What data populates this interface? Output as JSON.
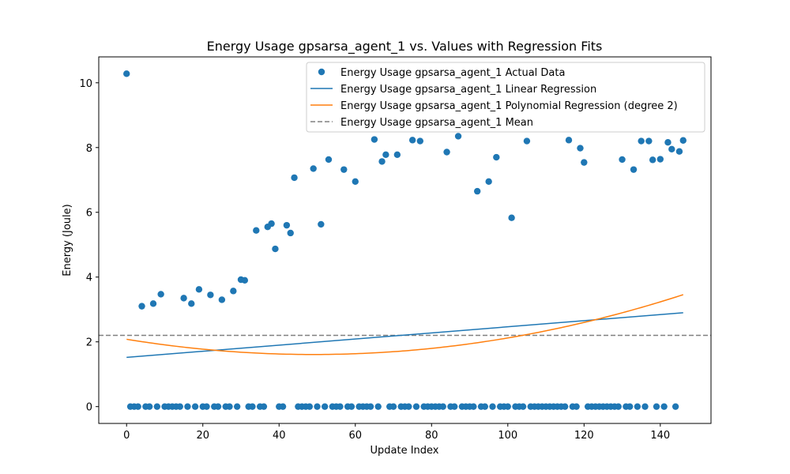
{
  "chart_data": {
    "type": "scatter",
    "title": "Energy Usage gpsarsa_agent_1 vs. Values with Regression Fits",
    "xlabel": "Update Index",
    "ylabel": "Energy (Joule)",
    "xlim": [
      -7.3,
      153.3
    ],
    "ylim": [
      -0.52,
      10.8
    ],
    "xticks": [
      0,
      20,
      40,
      60,
      80,
      100,
      120,
      140
    ],
    "yticks": [
      0,
      2,
      4,
      6,
      8,
      10
    ],
    "grid": false,
    "legend_position": "top-right",
    "points": [
      [
        0,
        10.28
      ],
      [
        1,
        0
      ],
      [
        2,
        0
      ],
      [
        3,
        0
      ],
      [
        4,
        3.1
      ],
      [
        5,
        0
      ],
      [
        6,
        0
      ],
      [
        7,
        3.18
      ],
      [
        8,
        0
      ],
      [
        9,
        3.47
      ],
      [
        10,
        0
      ],
      [
        11,
        0
      ],
      [
        12,
        0
      ],
      [
        13,
        0
      ],
      [
        14,
        0
      ],
      [
        15,
        3.35
      ],
      [
        16,
        0
      ],
      [
        17,
        3.18
      ],
      [
        18,
        0
      ],
      [
        19,
        3.62
      ],
      [
        20,
        0
      ],
      [
        21,
        0
      ],
      [
        22,
        3.45
      ],
      [
        23,
        0
      ],
      [
        24,
        0
      ],
      [
        25,
        3.3
      ],
      [
        26,
        0
      ],
      [
        27,
        0
      ],
      [
        28,
        3.57
      ],
      [
        29,
        0
      ],
      [
        30,
        3.92
      ],
      [
        31,
        3.9
      ],
      [
        32,
        0
      ],
      [
        33,
        0
      ],
      [
        34,
        5.44
      ],
      [
        35,
        0
      ],
      [
        36,
        0
      ],
      [
        37,
        5.55
      ],
      [
        38,
        5.65
      ],
      [
        39,
        4.87
      ],
      [
        40,
        0
      ],
      [
        41,
        0
      ],
      [
        42,
        5.6
      ],
      [
        43,
        5.36
      ],
      [
        44,
        7.07
      ],
      [
        45,
        0
      ],
      [
        46,
        0
      ],
      [
        47,
        0
      ],
      [
        48,
        0
      ],
      [
        49,
        7.35
      ],
      [
        50,
        0
      ],
      [
        51,
        5.63
      ],
      [
        52,
        0
      ],
      [
        53,
        7.63
      ],
      [
        54,
        0
      ],
      [
        55,
        0
      ],
      [
        56,
        0
      ],
      [
        57,
        7.32
      ],
      [
        58,
        0
      ],
      [
        59,
        0
      ],
      [
        60,
        6.95
      ],
      [
        61,
        0
      ],
      [
        62,
        0
      ],
      [
        63,
        0
      ],
      [
        64,
        0
      ],
      [
        65,
        8.25
      ],
      [
        66,
        0
      ],
      [
        67,
        7.57
      ],
      [
        68,
        7.78
      ],
      [
        69,
        0
      ],
      [
        70,
        0
      ],
      [
        71,
        7.78
      ],
      [
        72,
        0
      ],
      [
        73,
        0
      ],
      [
        74,
        0
      ],
      [
        75,
        8.23
      ],
      [
        76,
        0
      ],
      [
        77,
        8.2
      ],
      [
        78,
        0
      ],
      [
        79,
        0
      ],
      [
        80,
        0
      ],
      [
        81,
        0
      ],
      [
        82,
        0
      ],
      [
        83,
        0
      ],
      [
        84,
        7.86
      ],
      [
        85,
        0
      ],
      [
        86,
        0
      ],
      [
        87,
        8.35
      ],
      [
        88,
        0
      ],
      [
        89,
        0
      ],
      [
        90,
        0
      ],
      [
        91,
        0
      ],
      [
        92,
        6.65
      ],
      [
        93,
        0
      ],
      [
        94,
        0
      ],
      [
        95,
        6.95
      ],
      [
        96,
        0
      ],
      [
        97,
        7.7
      ],
      [
        98,
        0
      ],
      [
        99,
        0
      ],
      [
        100,
        0
      ],
      [
        101,
        5.83
      ],
      [
        102,
        0
      ],
      [
        103,
        0
      ],
      [
        104,
        0
      ],
      [
        105,
        8.2
      ],
      [
        106,
        0
      ],
      [
        107,
        0
      ],
      [
        108,
        0
      ],
      [
        109,
        0
      ],
      [
        110,
        0
      ],
      [
        111,
        0
      ],
      [
        112,
        0
      ],
      [
        113,
        0
      ],
      [
        114,
        0
      ],
      [
        115,
        0
      ],
      [
        116,
        8.23
      ],
      [
        117,
        0
      ],
      [
        118,
        0
      ],
      [
        119,
        7.98
      ],
      [
        120,
        7.54
      ],
      [
        121,
        0
      ],
      [
        122,
        0
      ],
      [
        123,
        0
      ],
      [
        124,
        0
      ],
      [
        125,
        0
      ],
      [
        126,
        0
      ],
      [
        127,
        0
      ],
      [
        128,
        0
      ],
      [
        129,
        0
      ],
      [
        130,
        7.63
      ],
      [
        131,
        0
      ],
      [
        132,
        0
      ],
      [
        133,
        7.32
      ],
      [
        134,
        0
      ],
      [
        135,
        8.2
      ],
      [
        136,
        0
      ],
      [
        137,
        8.2
      ],
      [
        138,
        7.62
      ],
      [
        139,
        0
      ],
      [
        140,
        7.64
      ],
      [
        141,
        0
      ],
      [
        142,
        8.16
      ],
      [
        143,
        7.95
      ],
      [
        144,
        0
      ],
      [
        145,
        7.88
      ],
      [
        146,
        8.22
      ]
    ],
    "series": [
      {
        "name": "Energy Usage gpsarsa_agent_1 Actual Data",
        "kind": "scatter",
        "color": "#1f77b4"
      },
      {
        "name": "Energy Usage gpsarsa_agent_1 Linear Regression",
        "kind": "line",
        "color": "#1f77b4",
        "intercept": 1.52,
        "slope": 0.00945
      },
      {
        "name": "Energy Usage gpsarsa_agent_1 Polynomial Regression (degree 2)",
        "kind": "line",
        "color": "#ff7f0e",
        "coefficients": [
          2.08,
          -0.01922,
          0.0001962
        ]
      },
      {
        "name": "Energy Usage gpsarsa_agent_1 Mean",
        "kind": "hline",
        "color": "#808080",
        "value": 2.2
      }
    ],
    "x_range": [
      0,
      146
    ]
  }
}
